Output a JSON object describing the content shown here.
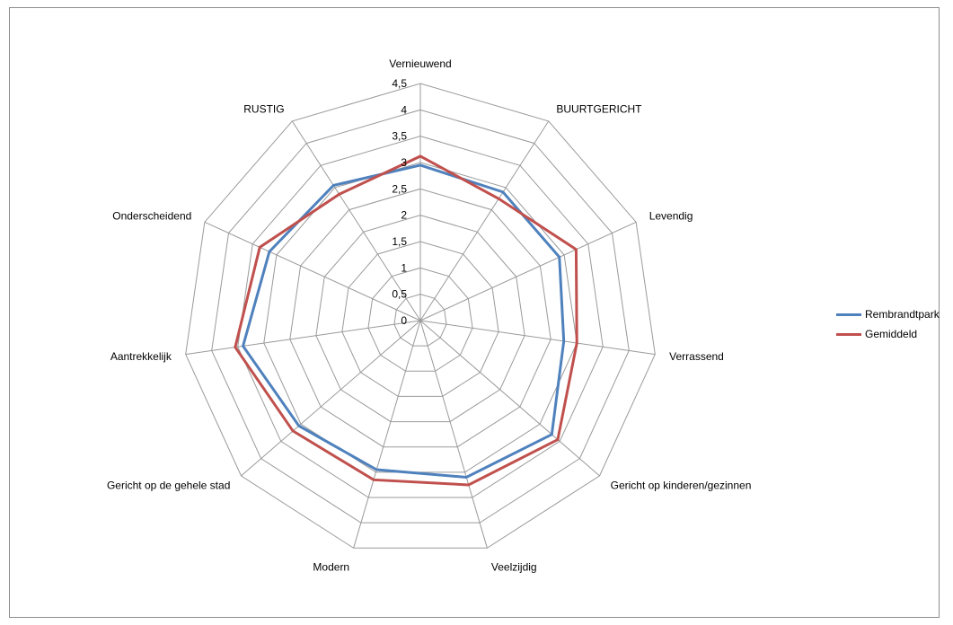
{
  "chart_data": {
    "type": "radar",
    "categories": [
      "Vernieuwend",
      "BUURTGERICHT",
      "Levendig",
      "Verrassend",
      "Gericht op kinderen/gezinnen",
      "Veelzijdig",
      "Modern",
      "Gericht op de gehele stad",
      "Aantrekkelijk",
      "Onderscheidend",
      "RUSTIG"
    ],
    "ticks": [
      "0",
      "0,5",
      "1",
      "1,5",
      "2",
      "2,5",
      "3",
      "3,5",
      "4",
      "4,5"
    ],
    "rmax": 4.5,
    "series": [
      {
        "name": "Rembrandtpark",
        "color": "#4f81bd",
        "values": [
          2.95,
          2.9,
          2.9,
          2.75,
          3.3,
          3.1,
          2.95,
          3.05,
          3.4,
          3.15,
          3.05
        ]
      },
      {
        "name": "Gemiddeld",
        "color": "#c0504d",
        "values": [
          3.12,
          2.75,
          3.25,
          3.0,
          3.45,
          3.25,
          3.15,
          3.2,
          3.55,
          3.35,
          2.85
        ]
      }
    ],
    "legend_position": "right"
  }
}
